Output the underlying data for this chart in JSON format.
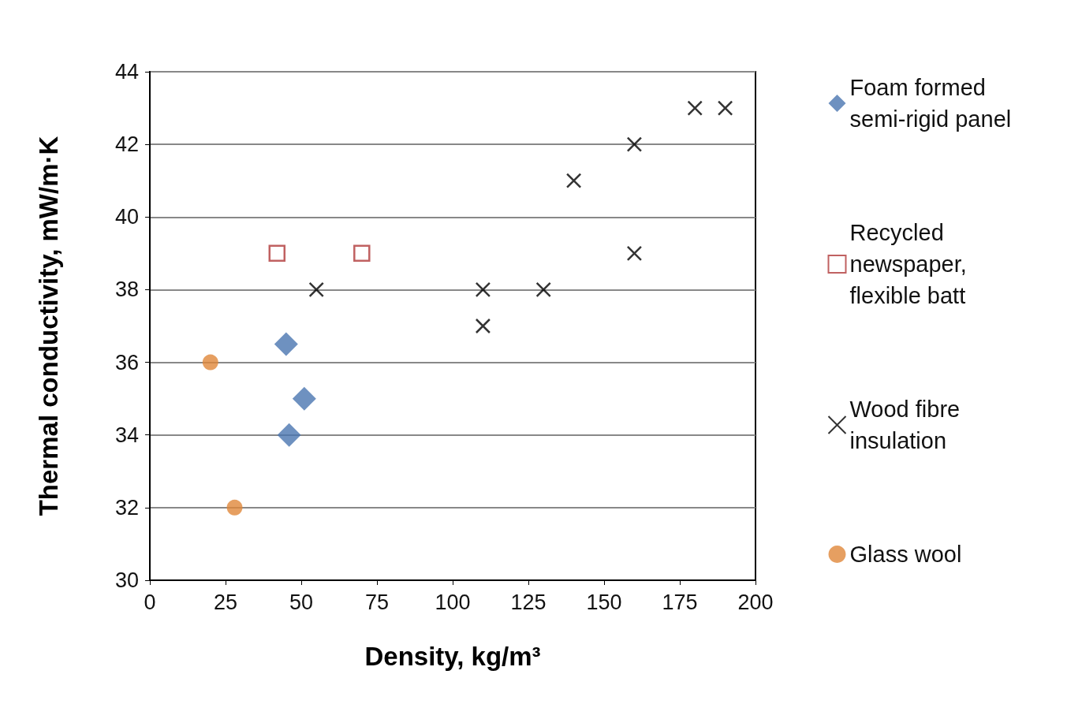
{
  "chart_data": {
    "type": "scatter",
    "xlabel": "Density, kg/m³",
    "ylabel": "Thermal conductivity, mW/m·K",
    "xlim": [
      0,
      200
    ],
    "xticks": [
      0,
      25,
      50,
      75,
      100,
      125,
      150,
      175,
      200
    ],
    "ylim": [
      30,
      44
    ],
    "yticks": [
      30,
      32,
      34,
      36,
      38,
      40,
      42,
      44
    ],
    "grid": "y",
    "legend": "right",
    "series": [
      {
        "name": "Foam formed semi-rigid panel",
        "color": "#4a76b0",
        "marker": "diamond",
        "x": [
          45,
          51,
          46
        ],
        "values": [
          36.5,
          35,
          34
        ]
      },
      {
        "name": "Recycled newspaper, flexible batt",
        "color": "#b03a3a",
        "marker": "square",
        "x": [
          42,
          70
        ],
        "values": [
          39,
          39
        ]
      },
      {
        "name": "Wood fibre insulation",
        "color": "#000000",
        "marker": "cross",
        "x": [
          55,
          110,
          110,
          130,
          140,
          160,
          160,
          180,
          190
        ],
        "values": [
          38,
          38,
          37,
          38,
          41,
          42,
          39,
          43,
          43
        ]
      },
      {
        "name": "Glass wool",
        "color": "#e0873a",
        "marker": "circle",
        "x": [
          20,
          28
        ],
        "values": [
          36,
          32
        ]
      }
    ]
  }
}
